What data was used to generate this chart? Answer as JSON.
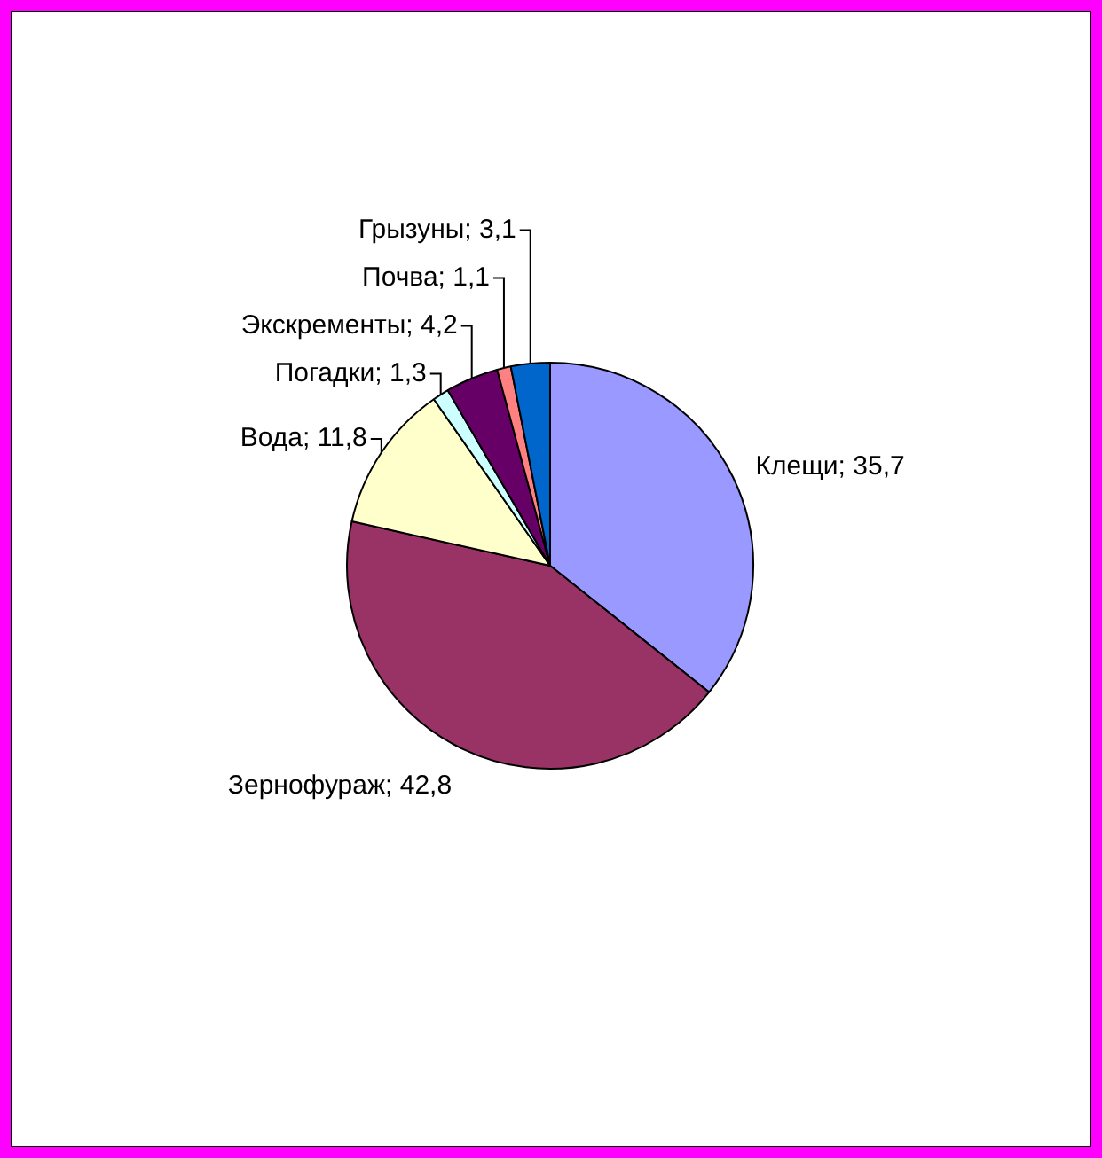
{
  "chart_data": {
    "type": "pie",
    "categories": [
      "Клещи",
      "Зернофураж",
      "Вода",
      "Погадки",
      "Экскременты",
      "Почва",
      "Грызуны"
    ],
    "values": [
      35.7,
      42.8,
      11.8,
      1.3,
      4.2,
      1.1,
      3.1
    ],
    "value_labels": [
      "35,7",
      "42,8",
      "11,8",
      "1,3",
      "4,2",
      "1,1",
      "3,1"
    ],
    "colors": [
      "#9999ff",
      "#993366",
      "#ffffcc",
      "#ccffff",
      "#660066",
      "#ff8080",
      "#0066cc"
    ],
    "legend": false
  }
}
